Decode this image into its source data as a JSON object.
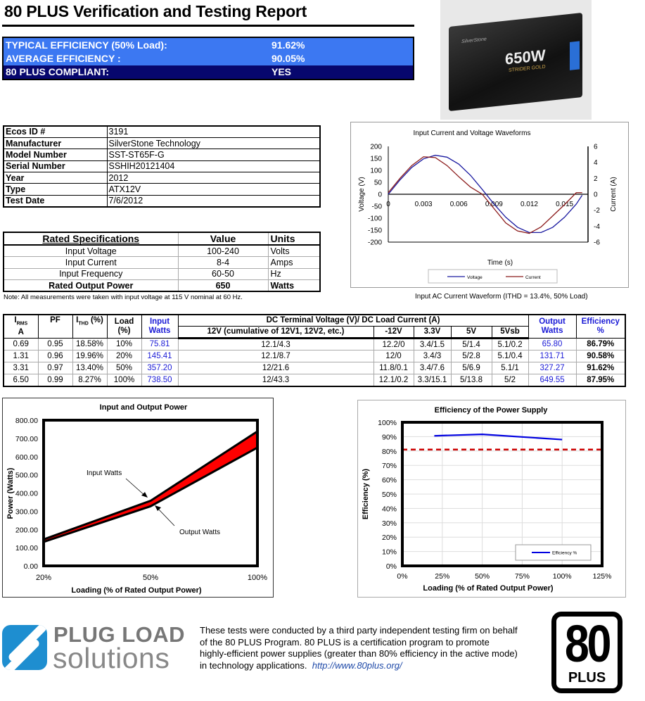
{
  "header": {
    "title": "80 PLUS Verification and Testing Report"
  },
  "summary": [
    {
      "label": "TYPICAL EFFICIENCY (50% Load):",
      "value": "91.62%"
    },
    {
      "label": "AVERAGE EFFICIENCY :",
      "value": "90.05%"
    },
    {
      "label": "80 PLUS COMPLIANT:",
      "value": "YES"
    }
  ],
  "product_photo": {
    "brand": "SilverStone",
    "label": "650W",
    "sub": "STRIDER GOLD"
  },
  "info": [
    {
      "key": "Ecos ID #",
      "value": "3191"
    },
    {
      "key": "Manufacturer",
      "value": "SilverStone Technology"
    },
    {
      "key": "Model Number",
      "value": "SST-ST65F-G"
    },
    {
      "key": "Serial Number",
      "value": "SSHIH20121404"
    },
    {
      "key": "Year",
      "value": "2012"
    },
    {
      "key": "Type",
      "value": "ATX12V"
    },
    {
      "key": "Test Date",
      "value": "7/6/2012"
    }
  ],
  "specs": {
    "headers": [
      "Rated Specifications",
      "Value",
      "Units"
    ],
    "rows": [
      [
        "Input Voltage",
        "100-240",
        "Volts"
      ],
      [
        "Input Current",
        "8-4",
        "Amps"
      ],
      [
        "Input Frequency",
        "60-50",
        "Hz"
      ],
      [
        "Rated Output Power",
        "650",
        "Watts"
      ]
    ]
  },
  "note": "Note: All measurements were taken with input voltage at 115 V nominal at 60 Hz.",
  "waveform_caption": "Input AC Current Waveform (ITHD = 13.4%, 50% Load)",
  "results": {
    "headers": {
      "irms": "I",
      "irms_sub": "RMS",
      "irms_unit": "A",
      "pf": "PF",
      "ithd": "I",
      "ithd_sub": "THD",
      "ithd_unit": " (%)",
      "load": "Load",
      "load_unit": "(%)",
      "input": "Input Watts",
      "dc": "DC Terminal Voltage (V)/ DC Load Current (A)",
      "v12": "12V (cumulative of 12V1, 12V2, etc.)",
      "vm12": "-12V",
      "v33": "3.3V",
      "v5": "5V",
      "v5sb": "5Vsb",
      "output": "Output Watts",
      "eff": "Efficiency %"
    },
    "rows": [
      [
        "0.69",
        "0.95",
        "18.58%",
        "10%",
        "75.81",
        "12.1/4.3",
        "12.2/0",
        "3.4/1.5",
        "5/1.4",
        "5.1/0.2",
        "65.80",
        "86.79%"
      ],
      [
        "1.31",
        "0.96",
        "19.96%",
        "20%",
        "145.41",
        "12.1/8.7",
        "12/0",
        "3.4/3",
        "5/2.8",
        "5.1/0.4",
        "131.71",
        "90.58%"
      ],
      [
        "3.31",
        "0.97",
        "13.40%",
        "50%",
        "357.20",
        "12/21.6",
        "11.8/0.1",
        "3.4/7.6",
        "5/6.9",
        "5.1/1",
        "327.27",
        "91.62%"
      ],
      [
        "6.50",
        "0.99",
        "8.27%",
        "100%",
        "738.50",
        "12/43.3",
        "12.1/0.2",
        "3.3/15.1",
        "5/13.8",
        "5/2",
        "649.55",
        "87.95%"
      ]
    ]
  },
  "chart_data": [
    {
      "type": "line",
      "title": "Input Current and Voltage Waveforms",
      "xlabel": "Time (s)",
      "ylabel": "Voltage (V)",
      "y2label": "Current (A)",
      "xlim": [
        0,
        0.017
      ],
      "ylim": [
        -200,
        200
      ],
      "y2lim": [
        -6,
        6
      ],
      "xticks": [
        "0",
        "0.003",
        "0.006",
        "0.009",
        "0.012",
        "0.015"
      ],
      "yticks": [
        "200",
        "150",
        "100",
        "50",
        "0",
        "-50",
        "-100",
        "-150",
        "-200"
      ],
      "y2ticks": [
        "6",
        "4",
        "2",
        "0",
        "-2",
        "-4",
        "-6"
      ],
      "x": [
        0,
        0.001,
        0.002,
        0.003,
        0.004,
        0.005,
        0.006,
        0.007,
        0.008,
        0.009,
        0.01,
        0.011,
        0.012,
        0.013,
        0.014,
        0.015,
        0.016,
        0.0165
      ],
      "series": [
        {
          "name": "Voltage",
          "axis": "left",
          "color": "#1a1aa0",
          "values": [
            0,
            60,
            112,
            148,
            163,
            155,
            126,
            79,
            20,
            -41,
            -96,
            -138,
            -160,
            -160,
            -138,
            -96,
            -41,
            -4
          ]
        },
        {
          "name": "Current",
          "axis": "right",
          "color": "#8b1a1a",
          "values": [
            0.2,
            2.0,
            3.6,
            4.7,
            4.6,
            3.6,
            2.2,
            0.9,
            0.0,
            -1.8,
            -3.6,
            -4.6,
            -4.9,
            -4.1,
            -2.7,
            -1.3,
            0.2,
            0.2
          ]
        }
      ],
      "legend": "bottom",
      "grid": false
    },
    {
      "type": "area",
      "title": "Input and Output Power",
      "xlabel": "Loading (% of Rated Output Power)",
      "ylabel": "Power (Watts)",
      "categories": [
        "20%",
        "50%",
        "100%"
      ],
      "ylim": [
        0,
        800
      ],
      "yticks": [
        "800.00",
        "700.00",
        "600.00",
        "500.00",
        "400.00",
        "300.00",
        "200.00",
        "100.00",
        "0.00"
      ],
      "series": [
        {
          "name": "Input Watts",
          "values": [
            145.41,
            357.2,
            738.5
          ]
        },
        {
          "name": "Output Watts",
          "values": [
            131.71,
            327.27,
            649.55
          ]
        }
      ],
      "fill_color": "#ff0000",
      "annotations": [
        "Input Watts",
        "Output Watts"
      ],
      "grid": false
    },
    {
      "type": "line",
      "title": "Efficiency of the Power Supply",
      "xlabel": "Loading (% of Rated Output Power)",
      "ylabel": "Efficiency (%)",
      "xlim": [
        0,
        125
      ],
      "ylim": [
        0,
        100
      ],
      "xticks": [
        "0%",
        "25%",
        "50%",
        "75%",
        "100%",
        "125%"
      ],
      "yticks": [
        "100%",
        "90%",
        "80%",
        "70%",
        "60%",
        "50%",
        "40%",
        "30%",
        "20%",
        "10%",
        "0%"
      ],
      "series": [
        {
          "name": "Efficiency %",
          "color": "#0000e0",
          "x": [
            20,
            50,
            100
          ],
          "values": [
            90.58,
            91.62,
            87.95
          ]
        }
      ],
      "reference_line": {
        "value": 81,
        "color": "#cc0000",
        "style": "dashed"
      },
      "legend": "bottom-right",
      "grid": true
    }
  ],
  "footer": {
    "logo_line1": "PLUG LOAD",
    "logo_line2": "solutions",
    "text_lines": [
      "These tests were conducted by a third party independent testing firm on behalf",
      "of the 80 PLUS Program. 80 PLUS is a certification program to promote",
      "highly-efficient power supplies (greater than 80% efficiency in the active mode)",
      "in technology applications."
    ],
    "link": "http://www.80plus.org/",
    "badge_number": "80",
    "badge_word": "PLUS"
  }
}
